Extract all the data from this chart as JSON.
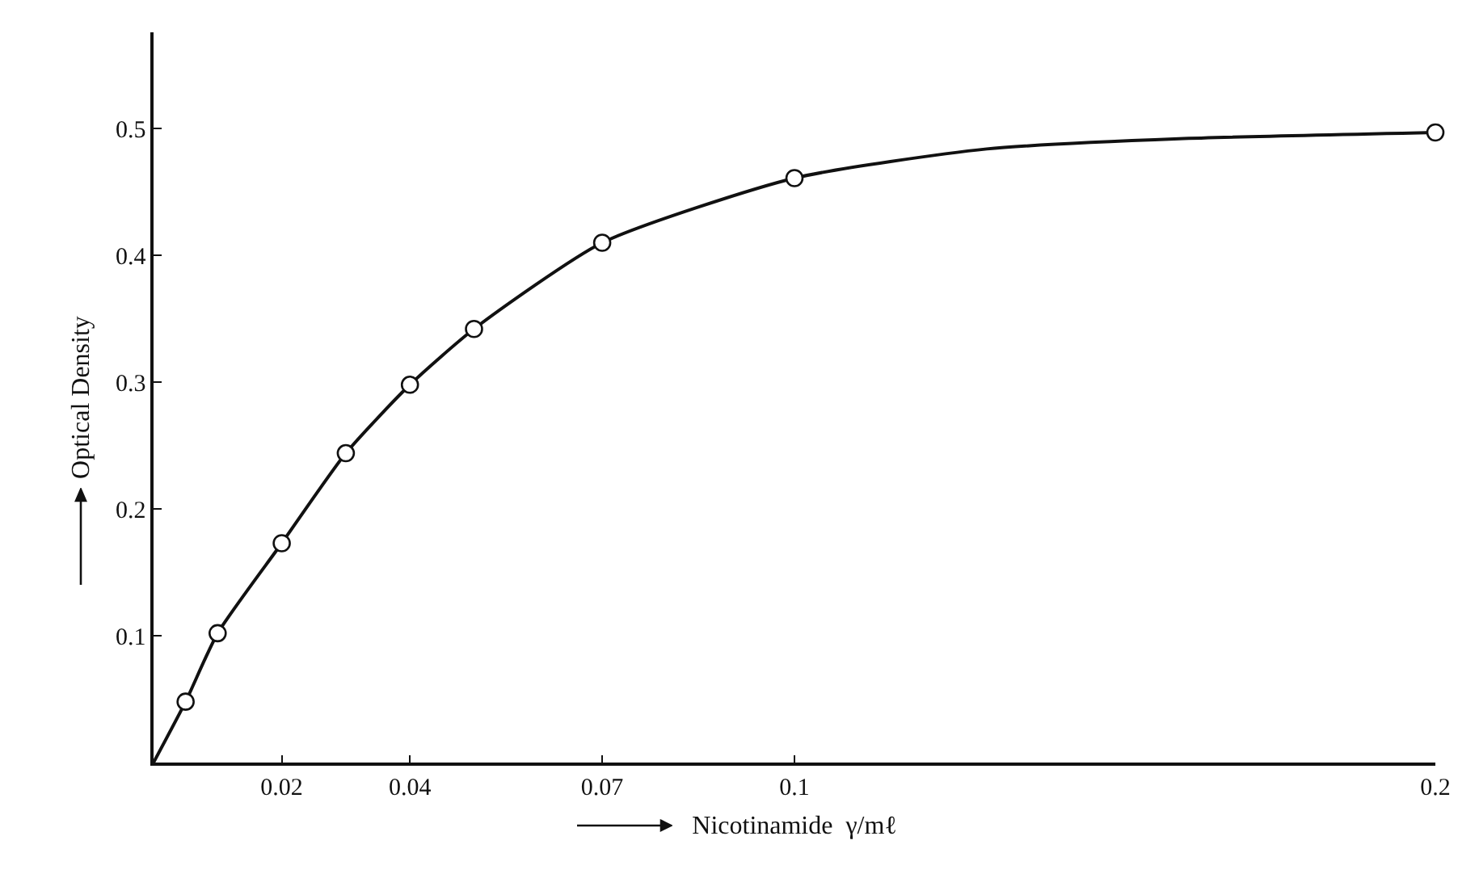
{
  "chart_data": {
    "type": "scatter",
    "xlabel": "Nicotinamide  γ/mℓ",
    "ylabel": "Optical Density",
    "xlim": [
      0,
      0.2
    ],
    "ylim": [
      0,
      0.576
    ],
    "xticks": [
      0.02,
      0.04,
      0.07,
      0.1,
      0.2
    ],
    "yticks": [
      0.1,
      0.2,
      0.3,
      0.4,
      0.5
    ],
    "grid": false,
    "legend": false,
    "series": [
      {
        "type": "line",
        "color": "#111111",
        "marker": "none",
        "line_style": "solid",
        "x": [
          0,
          0.005,
          0.01,
          0.02,
          0.03,
          0.04,
          0.05,
          0.07,
          0.1,
          0.13,
          0.16,
          0.2
        ],
        "values": [
          0,
          0.048,
          0.102,
          0.173,
          0.244,
          0.298,
          0.342,
          0.41,
          0.461,
          0.484,
          0.492,
          0.497
        ]
      },
      {
        "color": "#111111",
        "marker": "circle",
        "x": [
          0.005,
          0.01,
          0.02,
          0.03,
          0.04,
          0.05,
          0.07,
          0.1,
          0.2
        ],
        "values": [
          0.048,
          0.102,
          0.173,
          0.244,
          0.298,
          0.342,
          0.41,
          0.461,
          0.497
        ]
      }
    ]
  }
}
